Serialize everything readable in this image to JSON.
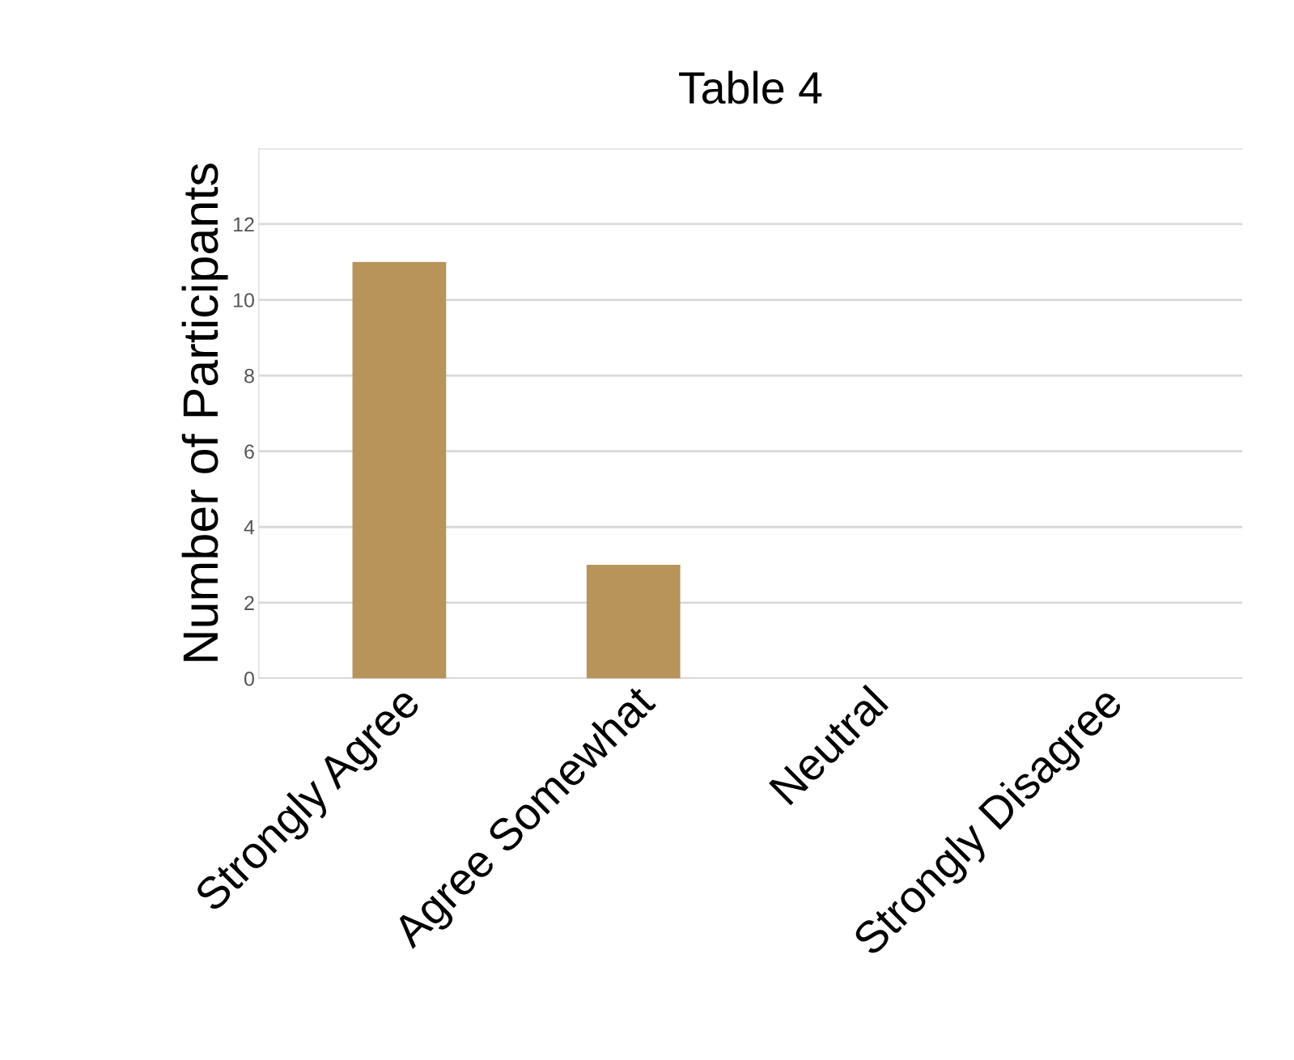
{
  "chart_data": {
    "type": "bar",
    "title": "Table 4",
    "ylabel": "Number of Participants",
    "categories": [
      "Strongly Agree",
      "Agree Somewhat",
      "Neutral",
      "Strongly Disagree"
    ],
    "values": [
      11,
      3,
      0,
      0
    ],
    "color": "#b8935a",
    "ylim": [
      0,
      14
    ],
    "yticks": [
      0,
      2,
      4,
      6,
      8,
      10,
      12,
      {
        "value": 14,
        "label": null
      }
    ],
    "grid": "y",
    "legend": false
  }
}
